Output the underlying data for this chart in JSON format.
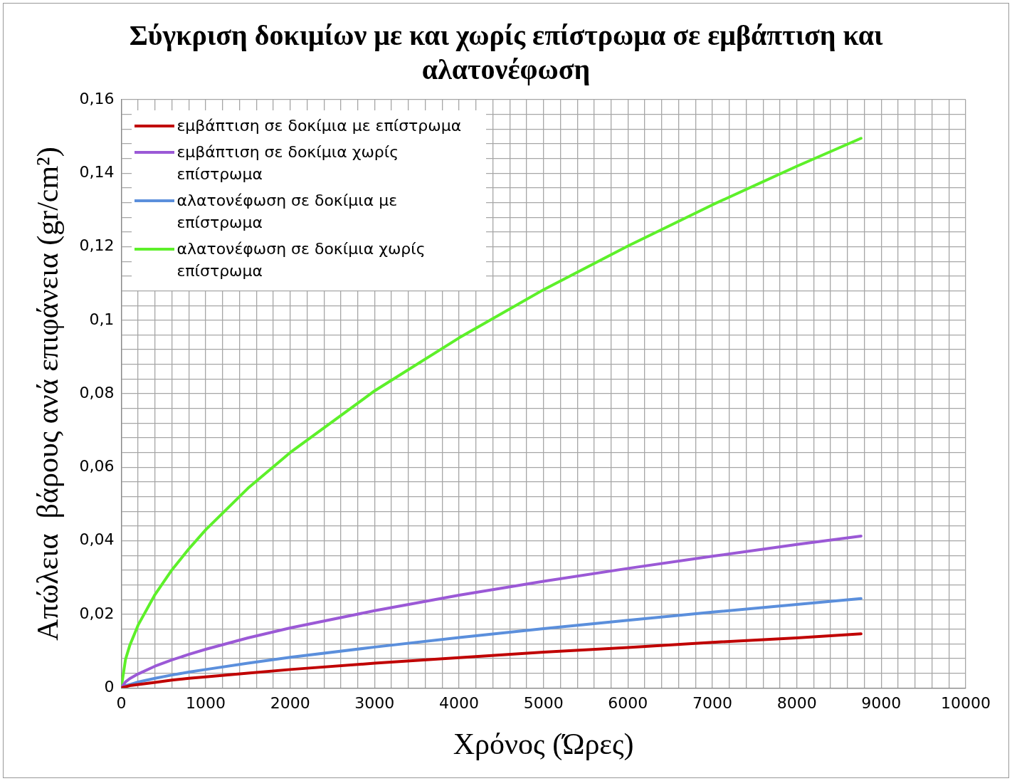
{
  "chart_data": {
    "type": "line",
    "title": "Σύγκριση δοκιμίων  με και χωρίς επίστρωμα σε εμβάπτιση και αλατονέφωση",
    "xlabel": "Χρόνος (Ώρες)",
    "ylabel": "Απώλεια  βάρους ανά επιφάνεια (gr/cm²)",
    "x": [
      0,
      50,
      100,
      200,
      400,
      600,
      800,
      1000,
      1500,
      2000,
      3000,
      4000,
      5000,
      6000,
      7000,
      8000,
      8760
    ],
    "series": [
      {
        "name": "εμβάπτιση σε δοκίμια με επίστρωμα",
        "color": "#c00000",
        "values": [
          0,
          0.0003,
          0.0006,
          0.0009,
          0.0015,
          0.0021,
          0.0026,
          0.003,
          0.004,
          0.005,
          0.0067,
          0.0082,
          0.0097,
          0.011,
          0.0124,
          0.0136,
          0.0147
        ]
      },
      {
        "name": "εμβάπτιση σε δοκίμια χωρίς επίστρωμα",
        "color": "#9b59d6",
        "values": [
          0,
          0.0016,
          0.0025,
          0.0038,
          0.0059,
          0.0076,
          0.0091,
          0.0105,
          0.0136,
          0.0163,
          0.021,
          0.0252,
          0.029,
          0.0325,
          0.0358,
          0.039,
          0.0413
        ]
      },
      {
        "name": "αλατονέφωση σε δοκίμια με επίστρωμα",
        "color": "#5b8fdc",
        "values": [
          0,
          0.0006,
          0.0009,
          0.0016,
          0.0026,
          0.0035,
          0.0043,
          0.005,
          0.0067,
          0.0083,
          0.0111,
          0.0137,
          0.0161,
          0.0184,
          0.0206,
          0.0227,
          0.0243
        ]
      },
      {
        "name": "αλατονέφωση σε δοκίμια χωρίς επίστρωμα",
        "color": "#5df02a",
        "values": [
          0,
          0.0077,
          0.0115,
          0.0171,
          0.0254,
          0.0321,
          0.0378,
          0.043,
          0.0543,
          0.064,
          0.0808,
          0.0952,
          0.1083,
          0.1202,
          0.1314,
          0.1419,
          0.1495
        ]
      }
    ],
    "xlim": [
      0,
      10000
    ],
    "xticks": [
      0,
      {
        "value": 200,
        "label": null
      },
      {
        "value": 400,
        "label": null
      },
      {
        "value": 600,
        "label": null
      },
      {
        "value": 800,
        "label": null
      },
      1000,
      {
        "value": 1200,
        "label": null
      },
      {
        "value": 1400,
        "label": null
      },
      {
        "value": 1600,
        "label": null
      },
      {
        "value": 1800,
        "label": null
      },
      2000,
      {
        "value": 2200,
        "label": null
      },
      {
        "value": 2400,
        "label": null
      },
      {
        "value": 2600,
        "label": null
      },
      {
        "value": 2800,
        "label": null
      },
      3000,
      {
        "value": 3200,
        "label": null
      },
      {
        "value": 3400,
        "label": null
      },
      {
        "value": 3600,
        "label": null
      },
      {
        "value": 3800,
        "label": null
      },
      4000,
      {
        "value": 4200,
        "label": null
      },
      {
        "value": 4400,
        "label": null
      },
      {
        "value": 4600,
        "label": null
      },
      {
        "value": 4800,
        "label": null
      },
      5000,
      {
        "value": 5200,
        "label": null
      },
      {
        "value": 5400,
        "label": null
      },
      {
        "value": 5600,
        "label": null
      },
      {
        "value": 5800,
        "label": null
      },
      6000,
      {
        "value": 6200,
        "label": null
      },
      {
        "value": 6400,
        "label": null
      },
      {
        "value": 6600,
        "label": null
      },
      {
        "value": 6800,
        "label": null
      },
      7000,
      {
        "value": 7200,
        "label": null
      },
      {
        "value": 7400,
        "label": null
      },
      {
        "value": 7600,
        "label": null
      },
      {
        "value": 7800,
        "label": null
      },
      8000,
      {
        "value": 8200,
        "label": null
      },
      {
        "value": 8400,
        "label": null
      },
      {
        "value": 8600,
        "label": null
      },
      {
        "value": 8800,
        "label": null
      },
      9000,
      {
        "value": 9200,
        "label": null
      },
      {
        "value": 9400,
        "label": null
      },
      {
        "value": 9600,
        "label": null
      },
      {
        "value": 9800,
        "label": null
      },
      10000
    ],
    "ylim": [
      0,
      0.16
    ],
    "yticks": [
      0,
      {
        "value": 0.004,
        "label": null
      },
      {
        "value": 0.008,
        "label": null
      },
      {
        "value": 0.012,
        "label": null
      },
      {
        "value": 0.016,
        "label": null
      },
      {
        "value": 0.02,
        "label": "0,02"
      },
      {
        "value": 0.024,
        "label": null
      },
      {
        "value": 0.028,
        "label": null
      },
      {
        "value": 0.032,
        "label": null
      },
      {
        "value": 0.036,
        "label": null
      },
      {
        "value": 0.04,
        "label": "0,04"
      },
      {
        "value": 0.044,
        "label": null
      },
      {
        "value": 0.048,
        "label": null
      },
      {
        "value": 0.052,
        "label": null
      },
      {
        "value": 0.056,
        "label": null
      },
      {
        "value": 0.06,
        "label": "0,06"
      },
      {
        "value": 0.064,
        "label": null
      },
      {
        "value": 0.068,
        "label": null
      },
      {
        "value": 0.072,
        "label": null
      },
      {
        "value": 0.076,
        "label": null
      },
      {
        "value": 0.08,
        "label": "0,08"
      },
      {
        "value": 0.084,
        "label": null
      },
      {
        "value": 0.088,
        "label": null
      },
      {
        "value": 0.092,
        "label": null
      },
      {
        "value": 0.096,
        "label": null
      },
      {
        "value": 0.1,
        "label": "0,1"
      },
      {
        "value": 0.104,
        "label": null
      },
      {
        "value": 0.108,
        "label": null
      },
      {
        "value": 0.112,
        "label": null
      },
      {
        "value": 0.116,
        "label": null
      },
      {
        "value": 0.12,
        "label": "0,12"
      },
      {
        "value": 0.124,
        "label": null
      },
      {
        "value": 0.128,
        "label": null
      },
      {
        "value": 0.132,
        "label": null
      },
      {
        "value": 0.136,
        "label": null
      },
      {
        "value": 0.14,
        "label": "0,14"
      },
      {
        "value": 0.144,
        "label": null
      },
      {
        "value": 0.148,
        "label": null
      },
      {
        "value": 0.152,
        "label": null
      },
      {
        "value": 0.156,
        "label": null
      },
      {
        "value": 0.16,
        "label": "0,16"
      }
    ],
    "grid": true,
    "legend": "top left"
  }
}
